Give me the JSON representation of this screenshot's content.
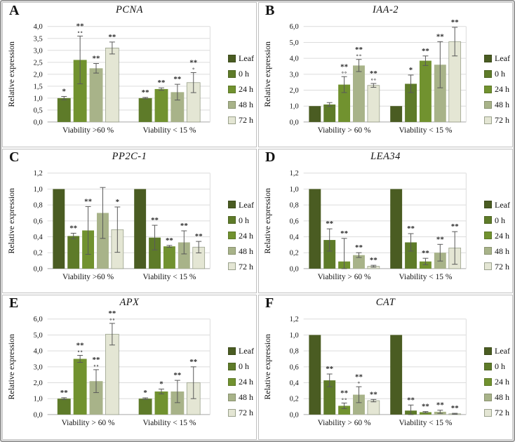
{
  "figure": {
    "decimal_separator": ",",
    "border_color": "#9b9b9b",
    "background": "#ffffff",
    "ylabel": "Relative expression"
  },
  "legend": {
    "position": "right",
    "items": [
      {
        "label": "Leaf",
        "color": "#4a5c22",
        "border": ""
      },
      {
        "label": "0 h",
        "color": "#5e7b29",
        "border": ""
      },
      {
        "label": "24 h",
        "color": "#71922f",
        "border": ""
      },
      {
        "label": "48 h",
        "color": "#a8b389",
        "border": ""
      },
      {
        "label": "72 h",
        "color": "#e4e6d4",
        "border": "#9aa18c"
      }
    ]
  },
  "chart_data": [
    {
      "type": "bar",
      "letter": "A",
      "title": "PCNA",
      "ylabel": "Relative expression",
      "ylim": [
        0,
        4.0
      ],
      "ystep": 0.5,
      "grid": true,
      "legend_position": "right",
      "groups": [
        {
          "label": "Viability >60  %",
          "bars": [
            {
              "series": "0 h",
              "value": 1.0,
              "err": 0.07,
              "sig": "*",
              "circles": ""
            },
            {
              "series": "24 h",
              "value": 2.6,
              "err": 1.0,
              "sig": "**",
              "circles": "∘∘"
            },
            {
              "series": "48 h",
              "value": 2.25,
              "err": 0.2,
              "sig": "**",
              "circles": ""
            },
            {
              "series": "72 h",
              "value": 3.1,
              "err": 0.25,
              "sig": "**",
              "circles": ""
            }
          ]
        },
        {
          "label": "Viability < 15 %",
          "bars": [
            {
              "series": "0 h",
              "value": 1.0,
              "err": 0.03,
              "sig": "**",
              "circles": ""
            },
            {
              "series": "24 h",
              "value": 1.38,
              "err": 0.05,
              "sig": "**",
              "circles": ""
            },
            {
              "series": "48 h",
              "value": 1.25,
              "err": 0.33,
              "sig": "**",
              "circles": ""
            },
            {
              "series": "72 h",
              "value": 1.65,
              "err": 0.42,
              "sig": "**",
              "circles": "∘"
            }
          ]
        }
      ]
    },
    {
      "type": "bar",
      "letter": "B",
      "title": "IAA-2",
      "ylabel": "Relative expression",
      "ylim": [
        0,
        6.0
      ],
      "ystep": 1.0,
      "grid": true,
      "legend_position": "right",
      "groups": [
        {
          "label": "Viability > 60 %",
          "bars": [
            {
              "series": "Leaf",
              "value": 1.0,
              "err": 0,
              "sig": "",
              "circles": ""
            },
            {
              "series": "0 h",
              "value": 1.1,
              "err": 0.12,
              "sig": "",
              "circles": ""
            },
            {
              "series": "24 h",
              "value": 2.35,
              "err": 0.5,
              "sig": "**",
              "circles": "∘∘"
            },
            {
              "series": "48 h",
              "value": 3.55,
              "err": 0.38,
              "sig": "**",
              "circles": "∘∘"
            },
            {
              "series": "72 h",
              "value": 2.3,
              "err": 0.12,
              "sig": "**",
              "circles": "∘∘"
            }
          ]
        },
        {
          "label": "Viability < 15 %",
          "bars": [
            {
              "series": "Leaf",
              "value": 1.0,
              "err": 0,
              "sig": "",
              "circles": ""
            },
            {
              "series": "0 h",
              "value": 2.4,
              "err": 0.55,
              "sig": "*",
              "circles": ""
            },
            {
              "series": "24 h",
              "value": 3.85,
              "err": 0.3,
              "sig": "**",
              "circles": ""
            },
            {
              "series": "48 h",
              "value": 3.6,
              "err": 1.45,
              "sig": "**",
              "circles": ""
            },
            {
              "series": "72 h",
              "value": 5.05,
              "err": 0.9,
              "sig": "**",
              "circles": ""
            }
          ]
        }
      ]
    },
    {
      "type": "bar",
      "letter": "C",
      "title": "PP2C-1",
      "ylabel": "Relative expression",
      "ylim": [
        0,
        1.2
      ],
      "ystep": 0.2,
      "grid": true,
      "legend_position": "right",
      "groups": [
        {
          "label": "Viability >60 %",
          "bars": [
            {
              "series": "Leaf",
              "value": 1.0,
              "err": 0,
              "sig": "",
              "circles": ""
            },
            {
              "series": "0 h",
              "value": 0.41,
              "err": 0.035,
              "sig": "**",
              "circles": ""
            },
            {
              "series": "24 h",
              "value": 0.48,
              "err": 0.3,
              "sig": "**",
              "circles": ""
            },
            {
              "series": "48 h",
              "value": 0.7,
              "err": 0.32,
              "sig": "",
              "circles": ""
            },
            {
              "series": "72 h",
              "value": 0.49,
              "err": 0.285,
              "sig": "*",
              "circles": ""
            }
          ]
        },
        {
          "label": "Viability < 15 %",
          "bars": [
            {
              "series": "Leaf",
              "value": 1.0,
              "err": 0,
              "sig": "",
              "circles": ""
            },
            {
              "series": "0 h",
              "value": 0.39,
              "err": 0.155,
              "sig": "**",
              "circles": ""
            },
            {
              "series": "24 h",
              "value": 0.28,
              "err": 0.012,
              "sig": "**",
              "circles": ""
            },
            {
              "series": "48 h",
              "value": 0.33,
              "err": 0.145,
              "sig": "**",
              "circles": ""
            },
            {
              "series": "72 h",
              "value": 0.27,
              "err": 0.072,
              "sig": "**",
              "circles": ""
            }
          ]
        }
      ]
    },
    {
      "type": "bar",
      "letter": "D",
      "title": "LEA34",
      "ylabel": "Relative expression",
      "ylim": [
        0,
        1.2
      ],
      "ystep": 0.2,
      "grid": true,
      "legend_position": "right",
      "groups": [
        {
          "label": "Viability > 60 %",
          "bars": [
            {
              "series": "Leaf",
              "value": 1.0,
              "err": 0,
              "sig": "",
              "circles": ""
            },
            {
              "series": "0 h",
              "value": 0.36,
              "err": 0.14,
              "sig": "**",
              "circles": ""
            },
            {
              "series": "24 h",
              "value": 0.09,
              "err": 0.29,
              "sig": "**",
              "circles": ""
            },
            {
              "series": "48 h",
              "value": 0.17,
              "err": 0.03,
              "sig": "**",
              "circles": ""
            },
            {
              "series": "72 h",
              "value": 0.03,
              "err": 0.012,
              "sig": "**",
              "circles": ""
            }
          ]
        },
        {
          "label": "Viability < 15 %",
          "bars": [
            {
              "series": "Leaf",
              "value": 1.0,
              "err": 0,
              "sig": "",
              "circles": ""
            },
            {
              "series": "0 h",
              "value": 0.33,
              "err": 0.11,
              "sig": "**",
              "circles": ""
            },
            {
              "series": "24 h",
              "value": 0.09,
              "err": 0.04,
              "sig": "**",
              "circles": ""
            },
            {
              "series": "48 h",
              "value": 0.2,
              "err": 0.105,
              "sig": "**",
              "circles": ""
            },
            {
              "series": "72 h",
              "value": 0.26,
              "err": 0.205,
              "sig": "**",
              "circles": ""
            }
          ]
        }
      ]
    },
    {
      "type": "bar",
      "letter": "E",
      "title": "APX",
      "ylabel": "Relative expression",
      "ylim": [
        0,
        6.0
      ],
      "ystep": 1.0,
      "grid": true,
      "legend_position": "right",
      "groups": [
        {
          "label": "Viability > 60 %",
          "bars": [
            {
              "series": "0 h",
              "value": 1.0,
              "err": 0.06,
              "sig": "**",
              "circles": ""
            },
            {
              "series": "24 h",
              "value": 3.5,
              "err": 0.22,
              "sig": "**",
              "circles": "∘∘"
            },
            {
              "series": "48 h",
              "value": 2.1,
              "err": 0.72,
              "sig": "**",
              "circles": "∘∘"
            },
            {
              "series": "72 h",
              "value": 5.05,
              "err": 0.68,
              "sig": "**",
              "circles": "∘∘"
            }
          ]
        },
        {
          "label": "Viability < 15 %",
          "bars": [
            {
              "series": "0 h",
              "value": 1.0,
              "err": 0.05,
              "sig": "*",
              "circles": ""
            },
            {
              "series": "24 h",
              "value": 1.45,
              "err": 0.15,
              "sig": "*",
              "circles": ""
            },
            {
              "series": "48 h",
              "value": 1.45,
              "err": 0.7,
              "sig": "**",
              "circles": ""
            },
            {
              "series": "72 h",
              "value": 2.0,
              "err": 1.0,
              "sig": "**",
              "circles": ""
            }
          ]
        }
      ]
    },
    {
      "type": "bar",
      "letter": "F",
      "title": "CAT",
      "ylabel": "Relative expression",
      "ylim": [
        0,
        1.2
      ],
      "ystep": 0.2,
      "grid": true,
      "legend_position": "right",
      "groups": [
        {
          "label": "Viability > 60 %",
          "bars": [
            {
              "series": "Leaf",
              "value": 1.0,
              "err": 0,
              "sig": "",
              "circles": ""
            },
            {
              "series": "0 h",
              "value": 0.43,
              "err": 0.08,
              "sig": "**",
              "circles": ""
            },
            {
              "series": "24 h",
              "value": 0.11,
              "err": 0.035,
              "sig": "**",
              "circles": "∘∘"
            },
            {
              "series": "48 h",
              "value": 0.25,
              "err": 0.1,
              "sig": "**",
              "circles": "∘"
            },
            {
              "series": "72 h",
              "value": 0.175,
              "err": 0.015,
              "sig": "**",
              "circles": ""
            }
          ]
        },
        {
          "label": "Viability < 15 %",
          "bars": [
            {
              "series": "Leaf",
              "value": 1.0,
              "err": 0,
              "sig": "",
              "circles": ""
            },
            {
              "series": "0 h",
              "value": 0.05,
              "err": 0.07,
              "sig": "**",
              "circles": ""
            },
            {
              "series": "24 h",
              "value": 0.03,
              "err": 0.008,
              "sig": "**",
              "circles": ""
            },
            {
              "series": "48 h",
              "value": 0.035,
              "err": 0.02,
              "sig": "**",
              "circles": ""
            },
            {
              "series": "72 h",
              "value": 0.01,
              "err": 0.006,
              "sig": "**",
              "circles": ""
            }
          ]
        }
      ]
    }
  ]
}
